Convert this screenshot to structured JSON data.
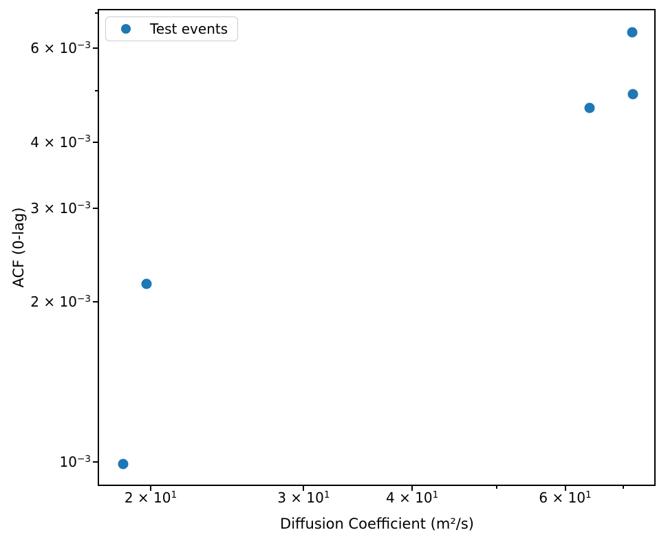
{
  "chart_data": {
    "type": "scatter",
    "title": "",
    "xlabel": "Diffusion Coefficient (m²/s)",
    "ylabel": "ACF (0-lag)",
    "xscale": "log",
    "yscale": "log",
    "xlim": [
      17.38,
      76.25
    ],
    "ylim": [
      0.000901,
      0.00712
    ],
    "grid": false,
    "legend": {
      "label": "Test events",
      "position": "upper-left",
      "marker_color": "#1f77b4"
    },
    "series": [
      {
        "name": "Test events",
        "color": "#1f77b4",
        "points": [
          {
            "x": 18.6,
            "y": 0.00099
          },
          {
            "x": 19.8,
            "y": 0.00216
          },
          {
            "x": 64.0,
            "y": 0.00464
          },
          {
            "x": 71.8,
            "y": 0.00492
          },
          {
            "x": 71.7,
            "y": 0.00644
          }
        ]
      }
    ],
    "x_ticks": {
      "labeled": [
        {
          "value": 20,
          "coef": "2",
          "exp": "1"
        },
        {
          "value": 30,
          "coef": "3",
          "exp": "1"
        },
        {
          "value": 40,
          "coef": "4",
          "exp": "1"
        },
        {
          "value": 60,
          "coef": "6",
          "exp": "1"
        }
      ],
      "unlabeled": [
        50,
        70
      ]
    },
    "y_ticks": {
      "labeled": [
        {
          "value": 0.001,
          "coef": "",
          "exp": "−3"
        },
        {
          "value": 0.002,
          "coef": "2",
          "exp": "−3"
        },
        {
          "value": 0.003,
          "coef": "3",
          "exp": "−3"
        },
        {
          "value": 0.004,
          "coef": "4",
          "exp": "−3"
        },
        {
          "value": 0.006,
          "coef": "6",
          "exp": "−3"
        }
      ],
      "unlabeled": [
        0.005,
        0.007
      ]
    }
  }
}
